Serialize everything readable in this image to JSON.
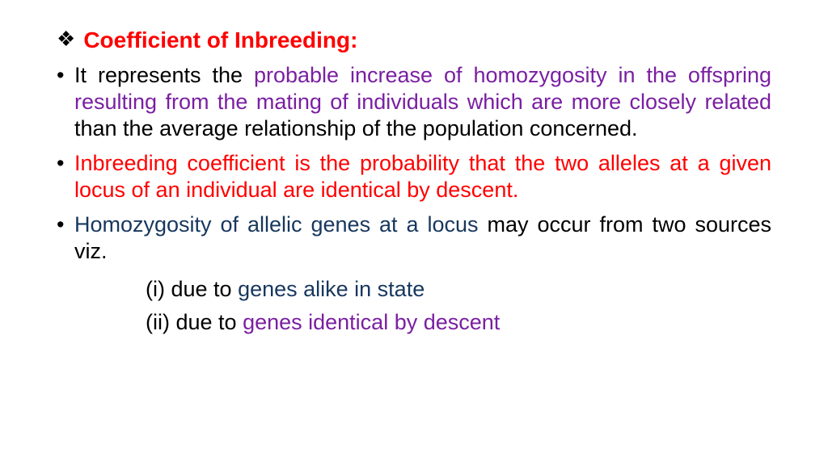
{
  "colors": {
    "black": "#000000",
    "red": "#ff0000",
    "purple": "#7a1fa2",
    "navy": "#17375e",
    "bg": "#ffffff"
  },
  "typography": {
    "family": "Comic Sans MS",
    "heading_size_pt": 21,
    "body_size_pt": 20
  },
  "heading": {
    "bullet_glyph": "❖",
    "text": "Coefficient of Inbreeding:"
  },
  "bullets": [
    {
      "spans": [
        {
          "text": "It represents the ",
          "color": "black"
        },
        {
          "text": "probable increase of homozygosity in the offspring resulting from the mating of individuals which are more closely related",
          "color": "purple"
        },
        {
          "text": " than the average relationship of the population concerned.",
          "color": "black"
        }
      ]
    },
    {
      "spans": [
        {
          "text": "Inbreeding coefficient is the probability that the two alleles at a given locus of an individual are identical by descent.",
          "color": "red"
        }
      ]
    },
    {
      "spans": [
        {
          "text": "Homozygosity of allelic genes at a locus",
          "color": "navy"
        },
        {
          "text": " may occur from two sources viz.",
          "color": "black"
        }
      ]
    }
  ],
  "subitems": [
    {
      "spans": [
        {
          "text": "(i) due to ",
          "color": "black"
        },
        {
          "text": "genes alike in state",
          "color": "navy"
        }
      ]
    },
    {
      "spans": [
        {
          "text": "(ii) due to ",
          "color": "black"
        },
        {
          "text": "genes identical by descent",
          "color": "purple"
        }
      ]
    }
  ]
}
